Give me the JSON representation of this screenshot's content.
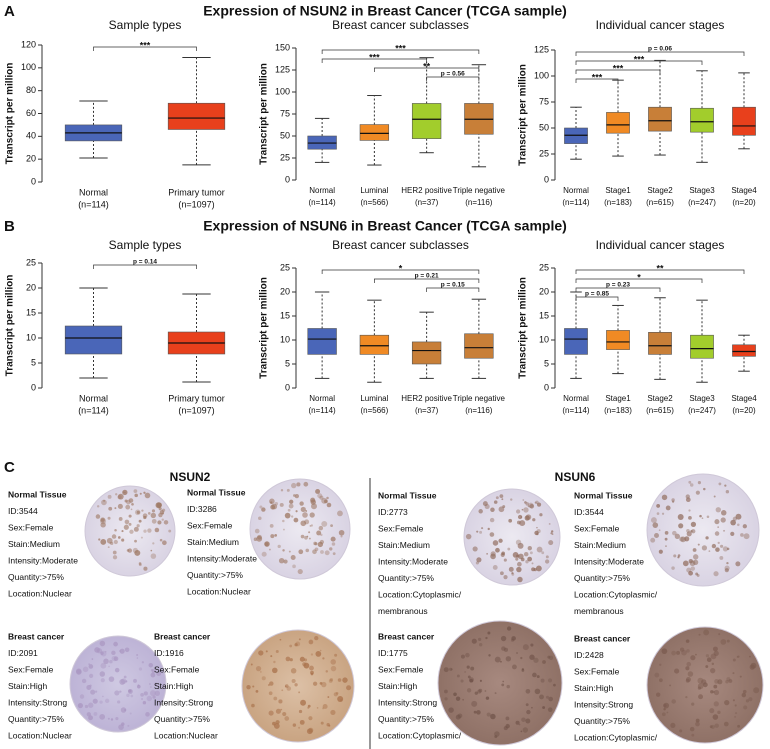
{
  "figure_titles": [
    {
      "label": "A",
      "title": "Expression of NSUN2 in Breast Cancer (TCGA sample)"
    },
    {
      "label": "B",
      "title": "Expression of NSUN6 in Breast Cancer (TCGA sample)"
    }
  ],
  "chart_data": [
    {
      "type": "box",
      "title": "Sample types",
      "y_label": "Transcript per million",
      "categories": [
        "Normal",
        "Primary tumor"
      ],
      "n_labels": [
        "(n=114)",
        "(n=1097)"
      ],
      "colors": [
        "#4a66b8",
        "#e8401c"
      ],
      "boxes": [
        {
          "min": 21,
          "q1": 36,
          "median": 43,
          "q3": 50,
          "max": 71
        },
        {
          "min": 15,
          "q1": 46,
          "median": 56,
          "q3": 69,
          "max": 109
        }
      ],
      "ylim": [
        0,
        120
      ],
      "yticks": [
        0,
        20,
        40,
        60,
        80,
        100,
        120
      ],
      "significance": [
        {
          "from": 0,
          "to": 1,
          "label": "***"
        }
      ]
    },
    {
      "type": "box",
      "title": "Breast cancer subclasses",
      "y_label": "Transcript per million",
      "categories": [
        "Normal",
        "Luminal",
        "HER2 positive",
        "Triple negative"
      ],
      "n_labels": [
        "(n=114)",
        "(n=566)",
        "(n=37)",
        "(n=116)"
      ],
      "colors": [
        "#4a66b8",
        "#f08a24",
        "#a2cd2c",
        "#c87f38"
      ],
      "boxes": [
        {
          "min": 20,
          "q1": 35,
          "median": 42,
          "q3": 50,
          "max": 70
        },
        {
          "min": 17,
          "q1": 45,
          "median": 53,
          "q3": 63,
          "max": 96
        },
        {
          "min": 31,
          "q1": 47,
          "median": 69,
          "q3": 87,
          "max": 139
        },
        {
          "min": 15,
          "q1": 52,
          "median": 69,
          "q3": 87,
          "max": 131
        }
      ],
      "ylim": [
        0,
        150
      ],
      "yticks": [
        0,
        25,
        50,
        75,
        100,
        125,
        150
      ],
      "significance": [
        {
          "from": 0,
          "to": 3,
          "label": "***"
        },
        {
          "from": 0,
          "to": 2,
          "label": "***"
        },
        {
          "from": 1,
          "to": 3,
          "label": "**"
        },
        {
          "from": 2,
          "to": 3,
          "label": "p = 0.56"
        }
      ]
    },
    {
      "type": "box",
      "title": "Individual cancer stages",
      "y_label": "Transcript per million",
      "categories": [
        "Normal",
        "Stage1",
        "Stage2",
        "Stage3",
        "Stage4"
      ],
      "n_labels": [
        "(n=114)",
        "(n=183)",
        "(n=615)",
        "(n=247)",
        "(n=20)"
      ],
      "colors": [
        "#4a66b8",
        "#f08a24",
        "#c87f38",
        "#a2cd2c",
        "#e8401c"
      ],
      "boxes": [
        {
          "min": 20,
          "q1": 35,
          "median": 43,
          "q3": 50,
          "max": 70
        },
        {
          "min": 23,
          "q1": 45,
          "median": 53,
          "q3": 65,
          "max": 96
        },
        {
          "min": 24,
          "q1": 47,
          "median": 57,
          "q3": 70,
          "max": 115
        },
        {
          "min": 17,
          "q1": 46,
          "median": 56,
          "q3": 69,
          "max": 105
        },
        {
          "min": 30,
          "q1": 43,
          "median": 52,
          "q3": 70,
          "max": 103
        }
      ],
      "ylim": [
        0,
        125
      ],
      "yticks": [
        0,
        25,
        50,
        75,
        100,
        125
      ],
      "significance": [
        {
          "from": 0,
          "to": 4,
          "label": "p = 0.06"
        },
        {
          "from": 0,
          "to": 3,
          "label": "***"
        },
        {
          "from": 0,
          "to": 2,
          "label": "***"
        },
        {
          "from": 0,
          "to": 1,
          "label": "***"
        }
      ]
    },
    {
      "type": "box",
      "title": "Sample types",
      "y_label": "Transcript per million",
      "categories": [
        "Normal",
        "Primary tumor"
      ],
      "n_labels": [
        "(n=114)",
        "(n=1097)"
      ],
      "colors": [
        "#4a66b8",
        "#e8401c"
      ],
      "boxes": [
        {
          "min": 2,
          "q1": 6.8,
          "median": 10,
          "q3": 12.4,
          "max": 20
        },
        {
          "min": 1.2,
          "q1": 6.8,
          "median": 9,
          "q3": 11.2,
          "max": 18.8
        }
      ],
      "ylim": [
        0,
        25
      ],
      "yticks": [
        0,
        5,
        10,
        15,
        20,
        25
      ],
      "significance": [
        {
          "from": 0,
          "to": 1,
          "label": "p = 0.14"
        }
      ]
    },
    {
      "type": "box",
      "title": "Breast cancer subclasses",
      "y_label": "Transcript per million",
      "categories": [
        "Normal",
        "Luminal",
        "HER2 positive",
        "Triple negative"
      ],
      "n_labels": [
        "(n=114)",
        "(n=566)",
        "(n=37)",
        "(n=116)"
      ],
      "colors": [
        "#4a66b8",
        "#f08a24",
        "#c87f38",
        "#c87f38"
      ],
      "boxes": [
        {
          "min": 2,
          "q1": 7,
          "median": 10.2,
          "q3": 12.4,
          "max": 20
        },
        {
          "min": 1.2,
          "q1": 7,
          "median": 8.8,
          "q3": 11,
          "max": 18.3
        },
        {
          "min": 2,
          "q1": 5,
          "median": 7.8,
          "q3": 9.6,
          "max": 15.8
        },
        {
          "min": 2,
          "q1": 6.2,
          "median": 8.4,
          "q3": 11.3,
          "max": 18.5
        }
      ],
      "ylim": [
        0,
        25
      ],
      "yticks": [
        0,
        5,
        10,
        15,
        20,
        25
      ],
      "significance": [
        {
          "from": 0,
          "to": 3,
          "label": "*"
        },
        {
          "from": 1,
          "to": 3,
          "label": "p = 0.21"
        },
        {
          "from": 2,
          "to": 3,
          "label": "p = 0.15"
        }
      ]
    },
    {
      "type": "box",
      "title": "Individual cancer stages",
      "y_label": "Transcript per million",
      "categories": [
        "Normal",
        "Stage1",
        "Stage2",
        "Stage3",
        "Stage4"
      ],
      "n_labels": [
        "(n=114)",
        "(n=183)",
        "(n=615)",
        "(n=247)",
        "(n=20)"
      ],
      "colors": [
        "#4a66b8",
        "#f08a24",
        "#c87f38",
        "#a2cd2c",
        "#e8401c"
      ],
      "boxes": [
        {
          "min": 2,
          "q1": 7,
          "median": 10.2,
          "q3": 12.4,
          "max": 20
        },
        {
          "min": 3,
          "q1": 8,
          "median": 9.6,
          "q3": 12,
          "max": 17.2
        },
        {
          "min": 1.8,
          "q1": 7,
          "median": 8.8,
          "q3": 11.6,
          "max": 18.8
        },
        {
          "min": 1.2,
          "q1": 6.2,
          "median": 8.2,
          "q3": 11,
          "max": 18.3
        },
        {
          "min": 3.5,
          "q1": 6.6,
          "median": 7.6,
          "q3": 9,
          "max": 11
        }
      ],
      "ylim": [
        0,
        25
      ],
      "yticks": [
        0,
        5,
        10,
        15,
        20,
        25
      ],
      "significance": [
        {
          "from": 0,
          "to": 4,
          "label": "**"
        },
        {
          "from": 0,
          "to": 3,
          "label": "*"
        },
        {
          "from": 0,
          "to": 2,
          "label": "p = 0.23"
        },
        {
          "from": 0,
          "to": 1,
          "label": "p = 0.85"
        }
      ]
    }
  ],
  "ihc": {
    "label": "C",
    "columns": [
      {
        "gene": "NSUN2",
        "samples": [
          {
            "lines": [
              "Normal Tissue",
              "ID:3544",
              "Sex:Female",
              "Stain:Medium",
              "Intensity:Moderate",
              "Quantity:>75%",
              "Location:Nuclear"
            ]
          },
          {
            "lines": [
              "Normal Tissue",
              "ID:3286",
              "Sex:Female",
              "Stain:Medium",
              "Intensity:Moderate",
              "Quantity:>75%",
              "Location:Nuclear"
            ]
          },
          {
            "lines": [
              "Breast cancer",
              "ID:2091",
              "Sex:Female",
              "Stain:High",
              "Intensity:Strong",
              "Quantity:>75%",
              "Location:Nuclear"
            ]
          },
          {
            "lines": [
              "Breast cancer",
              "ID:1916",
              "Sex:Female",
              "Stain:High",
              "Intensity:Strong",
              "Quantity:>75%",
              "Location:Nuclear"
            ]
          }
        ]
      },
      {
        "gene": "NSUN6",
        "samples": [
          {
            "lines": [
              "Normal Tissue",
              "ID:2773",
              "Sex:Female",
              "Stain:Medium",
              "Intensity:Moderate",
              "Quantity:>75%",
              "Location:Cytoplasmic/",
              "membranous"
            ]
          },
          {
            "lines": [
              "Normal Tissue",
              "ID:3544",
              "Sex:Female",
              "Stain:Medium",
              "Intensity:Moderate",
              "Quantity:>75%",
              "Location:Cytoplasmic/",
              "membranous"
            ]
          },
          {
            "lines": [
              "Breast cancer",
              "ID:1775",
              "Sex:Female",
              "Stain:High",
              "Intensity:Strong",
              "Quantity:>75%",
              "Location:Cytoplasmic/",
              "membranous"
            ]
          },
          {
            "lines": [
              "Breast cancer",
              "ID:2428",
              "Sex:Female",
              "Stain:High",
              "Intensity:Strong",
              "Quantity:>75%",
              "Location:Cytoplasmic/",
              "membranous"
            ]
          }
        ]
      }
    ]
  }
}
